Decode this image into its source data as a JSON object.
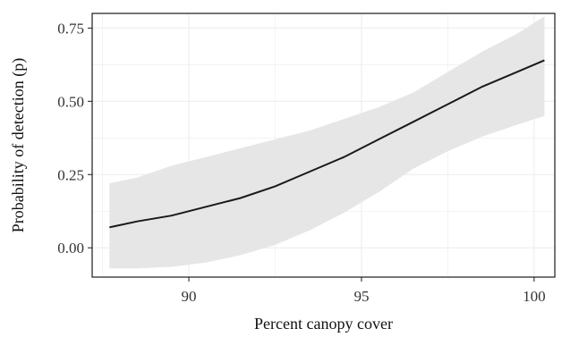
{
  "chart_data": {
    "type": "line",
    "title": "",
    "xlabel": "Percent canopy cover",
    "ylabel": "Probability of detection (p)",
    "xlim": [
      87.2,
      100.6
    ],
    "ylim": [
      -0.1,
      0.8
    ],
    "xticks": [
      90,
      95,
      100
    ],
    "xtick_labels": [
      "90",
      "95",
      "100"
    ],
    "yticks": [
      0.0,
      0.25,
      0.5,
      0.75
    ],
    "ytick_labels": [
      "0.00",
      "0.25",
      "0.50",
      "0.75"
    ],
    "grid": true,
    "legend": "none",
    "x": [
      87.7,
      88.5,
      89.5,
      90.5,
      91.5,
      92.5,
      93.5,
      94.5,
      95.5,
      96.5,
      97.5,
      98.5,
      99.5,
      100.3
    ],
    "series": [
      {
        "values": [
          0.07,
          0.09,
          0.11,
          0.14,
          0.17,
          0.21,
          0.26,
          0.31,
          0.37,
          0.43,
          0.49,
          0.55,
          0.6,
          0.64
        ],
        "lower": [
          -0.07,
          -0.07,
          -0.065,
          -0.05,
          -0.025,
          0.01,
          0.06,
          0.12,
          0.19,
          0.27,
          0.33,
          0.38,
          0.42,
          0.45
        ],
        "upper": [
          0.22,
          0.24,
          0.28,
          0.31,
          0.34,
          0.37,
          0.4,
          0.44,
          0.48,
          0.53,
          0.6,
          0.67,
          0.73,
          0.79
        ]
      }
    ],
    "colors": {
      "line": "#1a1a1a",
      "band": "#e6e6e6",
      "grid": "#ececec",
      "axis": "#1a1a1a"
    }
  }
}
